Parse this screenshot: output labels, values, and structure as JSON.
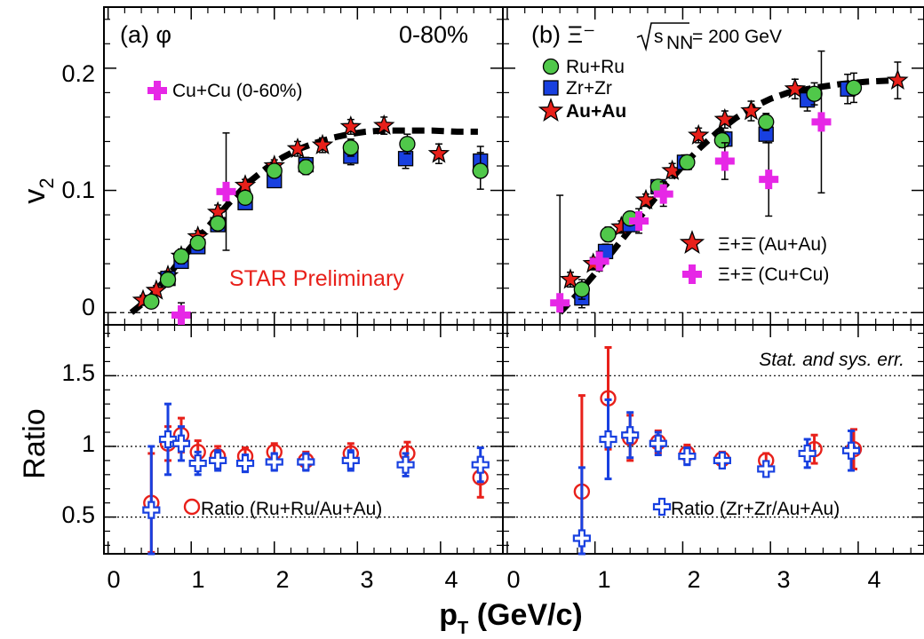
{
  "chart_data": [
    {
      "type": "scatter",
      "panel": "a",
      "panel_label": "(a) φ",
      "centrality": "0-80%",
      "ylabel": "v2",
      "ylim": [
        -0.01,
        0.25
      ],
      "xlim": [
        -0.05,
        4.75
      ],
      "yticks": [
        0,
        0.1,
        0.2
      ],
      "ytick_labels": [
        "0",
        "0.1",
        "0.2"
      ],
      "annotation": "STAR Preliminary",
      "legend": {
        "cucu": "Cu+Cu (0-60%)"
      },
      "fit_curve": [
        [
          0.28,
          0.0
        ],
        [
          0.5,
          0.012
        ],
        [
          0.7,
          0.028
        ],
        [
          0.9,
          0.046
        ],
        [
          1.1,
          0.062
        ],
        [
          1.3,
          0.078
        ],
        [
          1.5,
          0.093
        ],
        [
          1.7,
          0.107
        ],
        [
          1.9,
          0.118
        ],
        [
          2.1,
          0.127
        ],
        [
          2.3,
          0.134
        ],
        [
          2.5,
          0.139
        ],
        [
          2.7,
          0.143
        ],
        [
          2.9,
          0.146
        ],
        [
          3.1,
          0.148
        ],
        [
          3.3,
          0.149
        ],
        [
          3.6,
          0.149
        ],
        [
          3.9,
          0.149
        ],
        [
          4.2,
          0.148
        ],
        [
          4.45,
          0.148
        ]
      ],
      "series": [
        {
          "name": "Au+Au",
          "marker": "star",
          "color": "#e8201a",
          "x": [
            0.42,
            0.58,
            0.72,
            0.88,
            1.08,
            1.32,
            1.65,
            2.0,
            2.28,
            2.58,
            2.92,
            3.32,
            3.98
          ],
          "y": [
            0.01,
            0.018,
            0.03,
            0.046,
            0.062,
            0.082,
            0.104,
            0.12,
            0.134,
            0.137,
            0.152,
            0.153,
            0.13
          ],
          "err": [
            0.004,
            0.004,
            0.004,
            0.006,
            0.005,
            0.006,
            0.005,
            0.005,
            0.006,
            0.006,
            0.006,
            0.007,
            0.008
          ]
        },
        {
          "name": "Zr+Zr",
          "marker": "square",
          "color": "#1840e0",
          "x": [
            0.72,
            0.88,
            1.08,
            1.32,
            1.65,
            2.0,
            2.38,
            2.92,
            3.58,
            4.48
          ],
          "y": [
            0.028,
            0.042,
            0.054,
            0.072,
            0.09,
            0.108,
            0.121,
            0.128,
            0.126,
            0.124
          ],
          "err": [
            0.004,
            0.005,
            0.004,
            0.005,
            0.005,
            0.005,
            0.006,
            0.007,
            0.008,
            0.012
          ]
        },
        {
          "name": "Ru+Ru",
          "marker": "circle",
          "color": "#50c84a",
          "x": [
            0.52,
            0.72,
            0.88,
            1.08,
            1.32,
            1.65,
            2.0,
            2.38,
            2.92,
            3.6,
            4.48
          ],
          "y": [
            0.009,
            0.027,
            0.046,
            0.057,
            0.073,
            0.094,
            0.116,
            0.119,
            0.135,
            0.138,
            0.116
          ],
          "err": [
            0.004,
            0.004,
            0.006,
            0.005,
            0.005,
            0.005,
            0.005,
            0.006,
            0.007,
            0.008,
            0.015
          ]
        },
        {
          "name": "Cu+Cu (0-60%)",
          "marker": "cross",
          "color": "#e627e6",
          "x": [
            0.88,
            1.42
          ],
          "y": [
            -0.002,
            0.099
          ],
          "err": [
            0.01,
            0.048
          ]
        }
      ]
    },
    {
      "type": "scatter",
      "panel": "b",
      "panel_label": "(b) Ξ⁻",
      "energy_label": "√sNN = 200 GeV",
      "ylim": [
        -0.01,
        0.25
      ],
      "xlim": [
        -0.05,
        4.75
      ],
      "legend": {
        "ru": "Ru+Ru",
        "zr": "Zr+Zr",
        "au": "Au+Au",
        "xi_au": "Ξ+Ξ̄ (Au+Au)",
        "xi_cu": "Ξ+Ξ̄ (Cu+Cu)"
      },
      "fit_curve": [
        [
          0.6,
          0.0
        ],
        [
          0.8,
          0.015
        ],
        [
          1.0,
          0.032
        ],
        [
          1.2,
          0.05
        ],
        [
          1.4,
          0.068
        ],
        [
          1.6,
          0.086
        ],
        [
          1.8,
          0.104
        ],
        [
          2.0,
          0.12
        ],
        [
          2.2,
          0.135
        ],
        [
          2.4,
          0.148
        ],
        [
          2.6,
          0.159
        ],
        [
          2.8,
          0.168
        ],
        [
          3.0,
          0.175
        ],
        [
          3.2,
          0.18
        ],
        [
          3.5,
          0.184
        ],
        [
          3.8,
          0.187
        ],
        [
          4.1,
          0.189
        ],
        [
          4.4,
          0.19
        ]
      ],
      "series": [
        {
          "name": "Au+Au",
          "marker": "star",
          "color": "#e8201a",
          "x": [
            0.72,
            0.98,
            1.3,
            1.58,
            1.88,
            2.18,
            2.48,
            2.78,
            3.28,
            4.45
          ],
          "y": [
            0.027,
            0.04,
            0.07,
            0.092,
            0.116,
            0.145,
            0.158,
            0.165,
            0.183,
            0.19
          ],
          "err": [
            0.006,
            0.005,
            0.005,
            0.005,
            0.006,
            0.006,
            0.007,
            0.008,
            0.008,
            0.015
          ]
        },
        {
          "name": "Zr+Zr",
          "marker": "square",
          "color": "#1840e0",
          "x": [
            0.85,
            1.12,
            1.4,
            1.72,
            2.02,
            2.48,
            2.95,
            3.42,
            3.88
          ],
          "y": [
            0.012,
            0.05,
            0.072,
            0.103,
            0.123,
            0.142,
            0.146,
            0.174,
            0.183
          ],
          "err": [
            0.008,
            0.006,
            0.005,
            0.005,
            0.006,
            0.006,
            0.007,
            0.009,
            0.012
          ]
        },
        {
          "name": "Ru+Ru",
          "marker": "circle",
          "color": "#50c84a",
          "x": [
            0.85,
            1.15,
            1.4,
            1.72,
            2.05,
            2.45,
            2.95,
            3.5,
            3.95
          ],
          "y": [
            0.019,
            0.064,
            0.077,
            0.103,
            0.123,
            0.141,
            0.156,
            0.179,
            0.184
          ],
          "err": [
            0.008,
            0.006,
            0.005,
            0.005,
            0.006,
            0.006,
            0.007,
            0.009,
            0.012
          ]
        },
        {
          "name": "Ξ+Ξ̄ (Cu+Cu)",
          "marker": "cross",
          "color": "#e627e6",
          "x": [
            0.6,
            1.05,
            1.5,
            1.78,
            2.48,
            2.98,
            3.58
          ],
          "y": [
            0.008,
            0.042,
            0.075,
            0.097,
            0.124,
            0.109,
            0.156
          ],
          "err": [
            0.088,
            0.008,
            0.01,
            0.01,
            0.015,
            0.03,
            0.058
          ]
        }
      ]
    },
    {
      "type": "scatter",
      "panel": "a-ratio",
      "ylabel": "Ratio",
      "ylim": [
        0.24,
        1.86
      ],
      "xlim": [
        -0.05,
        4.75
      ],
      "yticks": [
        0.5,
        1,
        1.5
      ],
      "ytick_labels": [
        "0.5",
        "1",
        "1.5"
      ],
      "xlabel": "pT (GeV/c)",
      "xticks": [
        0,
        1,
        2,
        3,
        4
      ],
      "xtick_labels": [
        "0",
        "1",
        "2",
        "3",
        "4"
      ],
      "legend": {
        "ratio": "Ratio (Ru+Ru/Au+Au)"
      },
      "series": [
        {
          "name": "Ratio (Ru+Ru/Au+Au)",
          "marker": "open-circle",
          "color": "#e8201a",
          "x": [
            0.52,
            0.72,
            0.88,
            1.08,
            1.32,
            1.65,
            2.0,
            2.38,
            2.92,
            3.6,
            4.48
          ],
          "y": [
            0.6,
            1.02,
            1.08,
            0.96,
            0.93,
            0.93,
            0.96,
            0.9,
            0.95,
            0.95,
            0.78
          ],
          "err": [
            0.35,
            0.12,
            0.12,
            0.08,
            0.07,
            0.06,
            0.06,
            0.06,
            0.07,
            0.08,
            0.14
          ]
        },
        {
          "name": "Zr+Zr/Au+Au",
          "marker": "open-cross",
          "color": "#1840e0",
          "x": [
            0.52,
            0.72,
            0.88,
            1.08,
            1.32,
            1.65,
            2.0,
            2.38,
            2.92,
            3.58,
            4.48
          ],
          "y": [
            0.55,
            1.05,
            1.02,
            0.88,
            0.9,
            0.88,
            0.89,
            0.89,
            0.9,
            0.87,
            0.87
          ],
          "err": [
            0.45,
            0.25,
            0.12,
            0.08,
            0.07,
            0.06,
            0.06,
            0.06,
            0.07,
            0.08,
            0.12
          ]
        }
      ]
    },
    {
      "type": "scatter",
      "panel": "b-ratio",
      "ylim": [
        0.24,
        1.86
      ],
      "xlim": [
        -0.05,
        4.75
      ],
      "xticks": [
        0,
        1,
        2,
        3,
        4
      ],
      "xtick_labels": [
        "0",
        "1",
        "2",
        "3",
        "4"
      ],
      "annotation": "Stat. and sys. err.",
      "legend": {
        "ratio": "Ratio (Zr+Zr/Au+Au)"
      },
      "series": [
        {
          "name": "Ru+Ru/Au+Au",
          "marker": "open-circle",
          "color": "#e8201a",
          "x": [
            0.85,
            1.15,
            1.4,
            1.72,
            2.05,
            2.45,
            2.95,
            3.5,
            3.95
          ],
          "y": [
            0.68,
            1.34,
            1.06,
            1.03,
            0.95,
            0.91,
            0.9,
            0.98,
            0.98
          ],
          "err": [
            0.68,
            0.36,
            0.16,
            0.08,
            0.06,
            0.05,
            0.05,
            0.1,
            0.14
          ]
        },
        {
          "name": "Ratio (Zr+Zr/Au+Au)",
          "marker": "open-cross",
          "color": "#1840e0",
          "x": [
            0.85,
            1.15,
            1.4,
            1.72,
            2.05,
            2.45,
            2.95,
            3.42,
            3.92
          ],
          "y": [
            0.35,
            1.05,
            1.08,
            1.02,
            0.93,
            0.9,
            0.84,
            0.95,
            0.97
          ],
          "err": [
            0.5,
            0.28,
            0.16,
            0.08,
            0.06,
            0.05,
            0.05,
            0.1,
            0.14
          ]
        }
      ]
    }
  ]
}
